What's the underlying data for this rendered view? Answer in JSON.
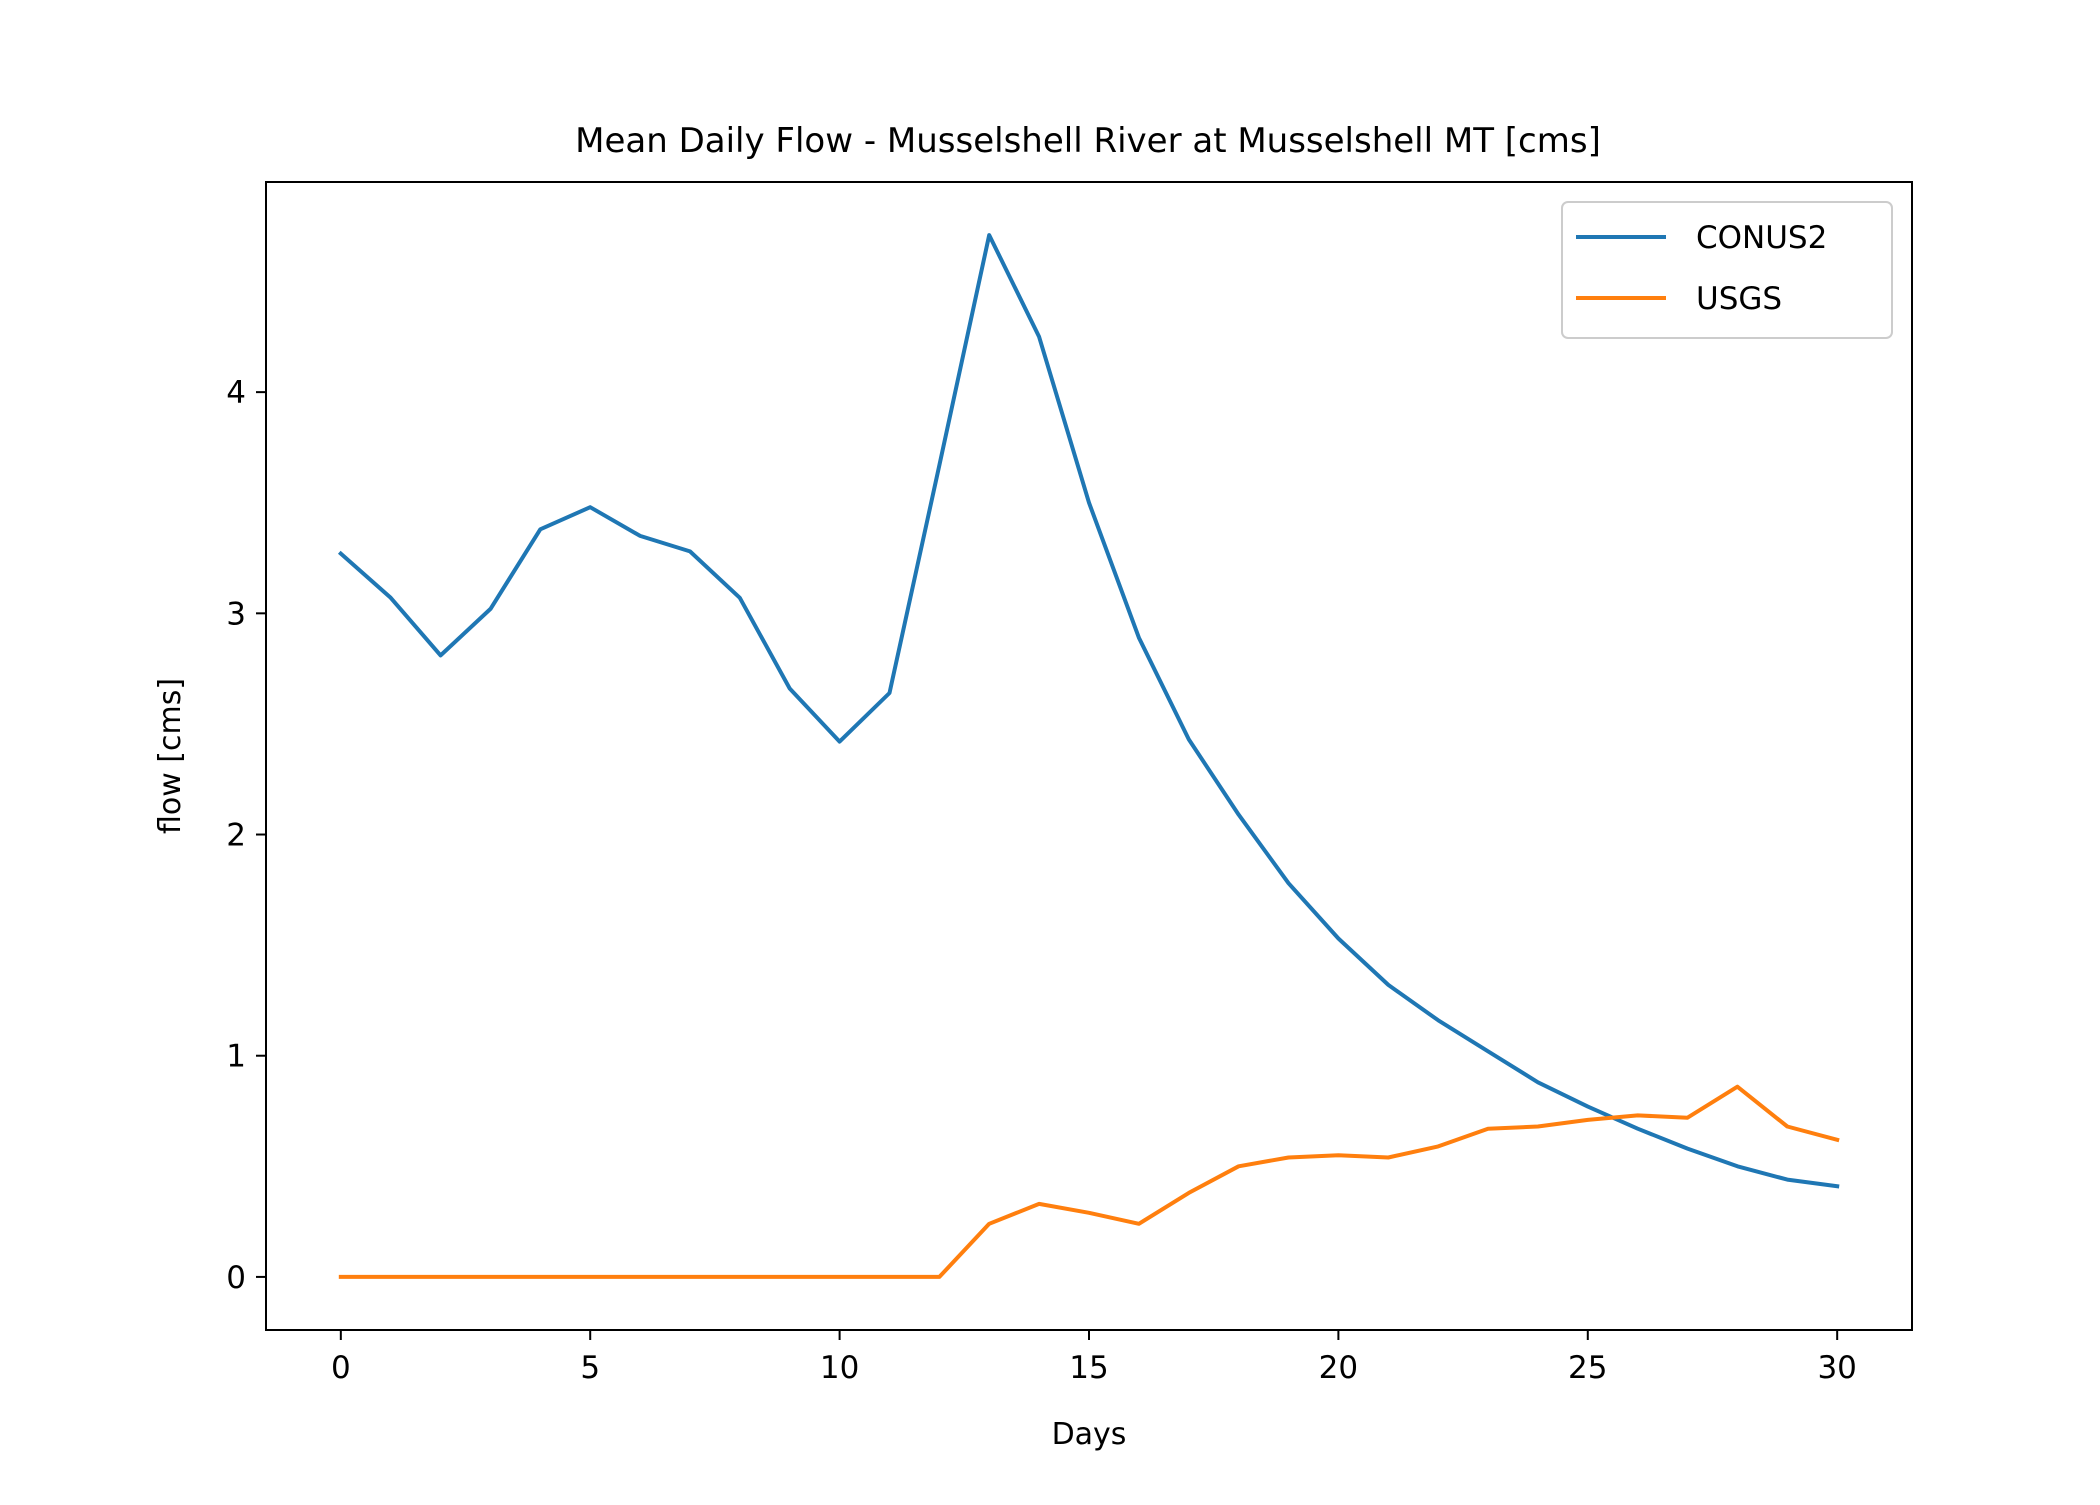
{
  "chart_data": {
    "type": "line",
    "title": "Mean Daily Flow - Musselshell River at Musselshell MT [cms]",
    "xlabel": "Days",
    "ylabel": "flow [cms]",
    "xlim": [
      -1.5,
      31.5
    ],
    "ylim": [
      -0.24,
      4.95
    ],
    "xticks": [
      0,
      5,
      10,
      15,
      20,
      25,
      30
    ],
    "yticks": [
      0,
      1,
      2,
      3,
      4
    ],
    "grid": false,
    "legend_position": "top-right",
    "x": [
      0,
      1,
      2,
      3,
      4,
      5,
      6,
      7,
      8,
      9,
      10,
      11,
      12,
      13,
      14,
      15,
      16,
      17,
      18,
      19,
      20,
      21,
      22,
      23,
      24,
      25,
      26,
      27,
      28,
      29,
      30
    ],
    "series": [
      {
        "name": "CONUS2",
        "color": "#1f77b4",
        "values": [
          3.27,
          3.07,
          2.81,
          3.02,
          3.38,
          3.48,
          3.35,
          3.28,
          3.07,
          2.66,
          2.42,
          2.64,
          3.67,
          4.71,
          4.25,
          3.5,
          2.89,
          2.43,
          2.09,
          1.78,
          1.53,
          1.32,
          1.16,
          1.02,
          0.88,
          0.77,
          0.67,
          0.58,
          0.5,
          0.44,
          0.41
        ]
      },
      {
        "name": "USGS",
        "color": "#ff7f0e",
        "values": [
          0,
          0,
          0,
          0,
          0,
          0,
          0,
          0,
          0,
          0,
          0,
          0,
          0,
          0.24,
          0.33,
          0.29,
          0.24,
          0.38,
          0.5,
          0.54,
          0.55,
          0.54,
          0.59,
          0.67,
          0.68,
          0.71,
          0.73,
          0.72,
          0.86,
          0.68,
          0.62
        ]
      }
    ]
  }
}
